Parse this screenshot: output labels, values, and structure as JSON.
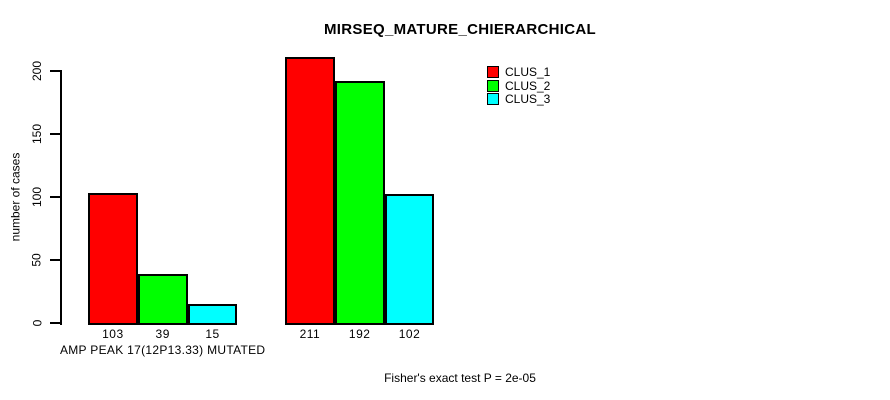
{
  "window": {
    "background_color": "#ffffff",
    "foreground_color": "#000000"
  },
  "chart_data": {
    "type": "bar",
    "title": "MIRSEQ_MATURE_CHIERARCHICAL",
    "ylabel": "number of cases",
    "xlabel": "",
    "categories": [
      "AMP PEAK 17(12P13.33) MUTATED",
      ""
    ],
    "series": [
      {
        "name": "CLUS_1",
        "color": "#ff0000",
        "values": [
          103,
          211
        ]
      },
      {
        "name": "CLUS_2",
        "color": "#00ff00",
        "values": [
          39,
          192
        ]
      },
      {
        "name": "CLUS_3",
        "color": "#00ffff",
        "values": [
          15,
          102
        ]
      }
    ],
    "bar_value_labels": [
      [
        103,
        39,
        15
      ],
      [
        211,
        192,
        102
      ]
    ],
    "yticks": [
      0,
      50,
      100,
      150,
      200
    ],
    "ylim": [
      0,
      215
    ],
    "bar_edge_color": "#000000",
    "grid": false,
    "legend": {
      "position": "topright",
      "border": "none",
      "entries": [
        {
          "label": "CLUS_1",
          "color": "#ff0000"
        },
        {
          "label": "CLUS_2",
          "color": "#00ff00"
        },
        {
          "label": "CLUS_3",
          "color": "#00ffff"
        }
      ]
    },
    "caption": "Fisher's exact test P = 2e-05"
  }
}
